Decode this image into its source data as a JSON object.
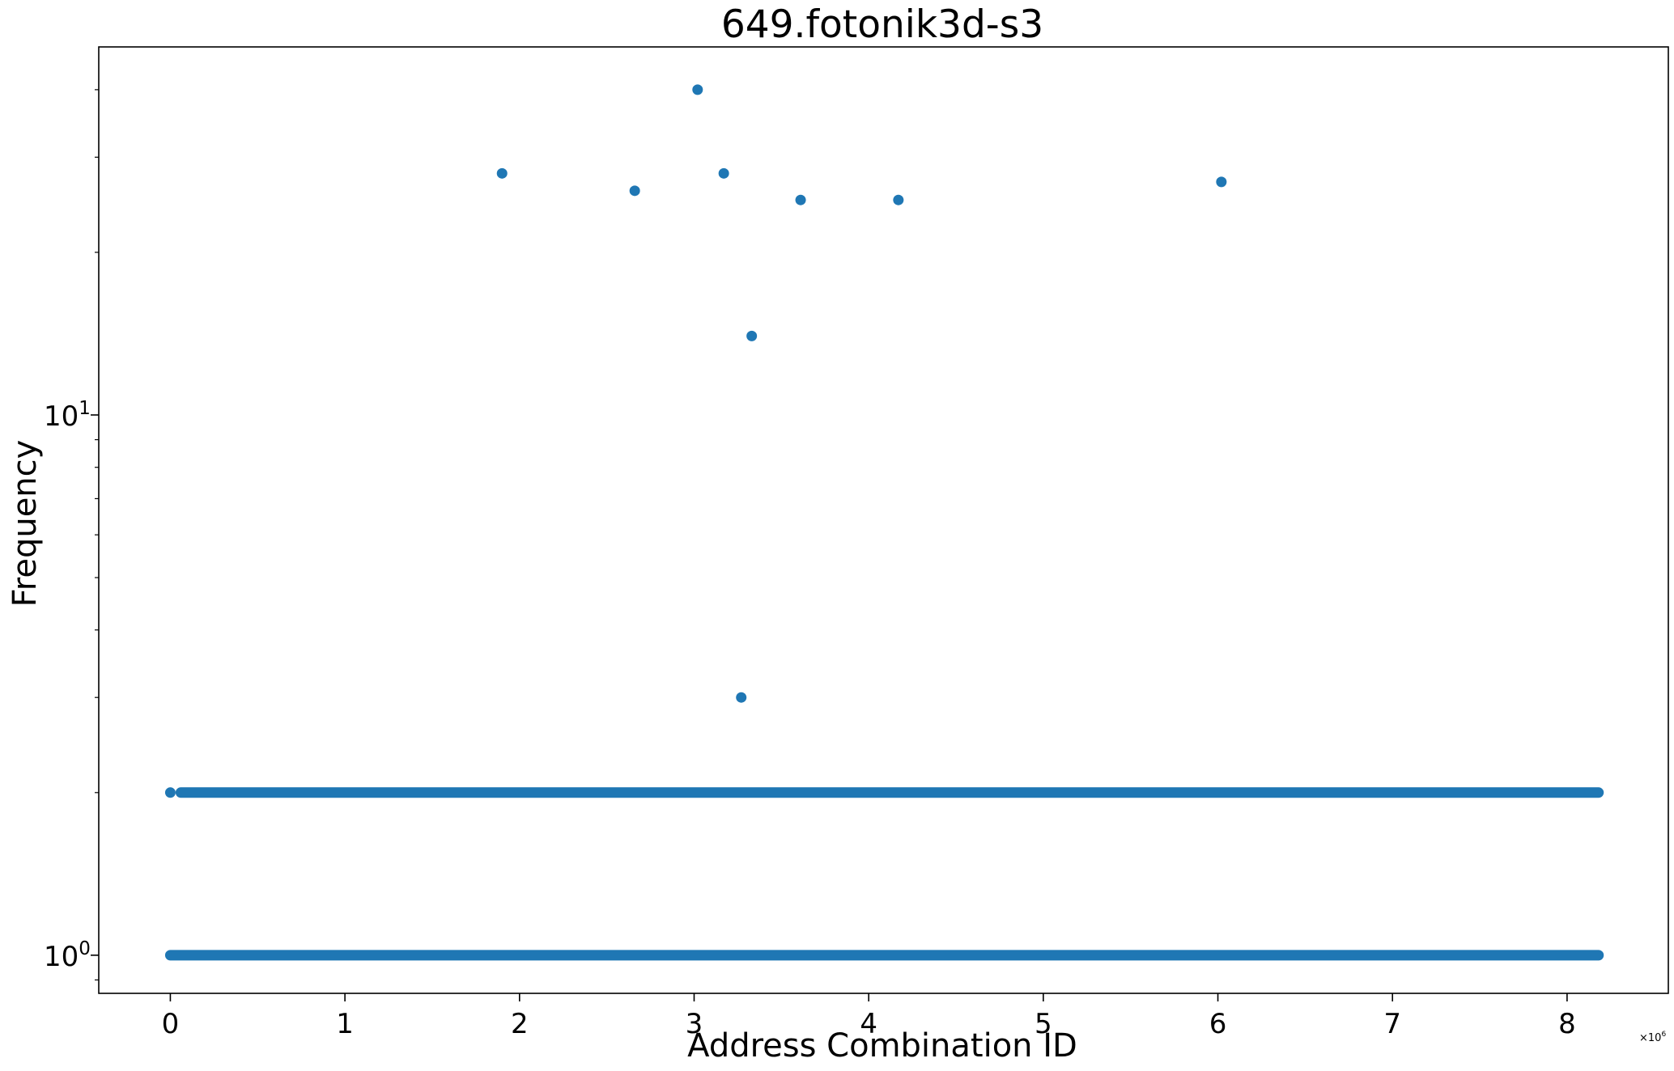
{
  "chart_data": {
    "type": "scatter",
    "title": "649.fotonik3d-s3",
    "xlabel": "Address Combination ID",
    "ylabel": "Frequency",
    "x_offset_label": {
      "base": "×10",
      "exponent": "6"
    },
    "y_scale": "log",
    "xlim": [
      -0.41,
      8.58
    ],
    "ylim": [
      0.85,
      48
    ],
    "grid": false,
    "legend": "none",
    "marker_color": "#1f77b4",
    "x_ticks": [
      {
        "value": 0,
        "label": "0"
      },
      {
        "value": 1,
        "label": "1"
      },
      {
        "value": 2,
        "label": "2"
      },
      {
        "value": 3,
        "label": "3"
      },
      {
        "value": 4,
        "label": "4"
      },
      {
        "value": 5,
        "label": "5"
      },
      {
        "value": 6,
        "label": "6"
      },
      {
        "value": 7,
        "label": "7"
      },
      {
        "value": 8,
        "label": "8"
      }
    ],
    "y_major_ticks": [
      {
        "value": 1,
        "base": "10",
        "exponent": "0"
      },
      {
        "value": 10,
        "base": "10",
        "exponent": "1"
      }
    ],
    "y_minor_ticks": [
      0.9,
      2,
      3,
      4,
      5,
      6,
      7,
      8,
      9,
      20,
      30,
      40
    ],
    "dense_bands": [
      {
        "y": 1,
        "x_start": 0,
        "x_end": 8.18
      },
      {
        "y": 2,
        "x_start": 0.06,
        "x_end": 8.18
      }
    ],
    "points": [
      {
        "x": 0.0,
        "y": 2
      },
      {
        "x": 1.9,
        "y": 28
      },
      {
        "x": 2.66,
        "y": 26
      },
      {
        "x": 3.02,
        "y": 40
      },
      {
        "x": 3.17,
        "y": 28
      },
      {
        "x": 3.27,
        "y": 3
      },
      {
        "x": 3.33,
        "y": 14
      },
      {
        "x": 3.61,
        "y": 25
      },
      {
        "x": 4.17,
        "y": 25
      },
      {
        "x": 6.02,
        "y": 27
      }
    ]
  }
}
